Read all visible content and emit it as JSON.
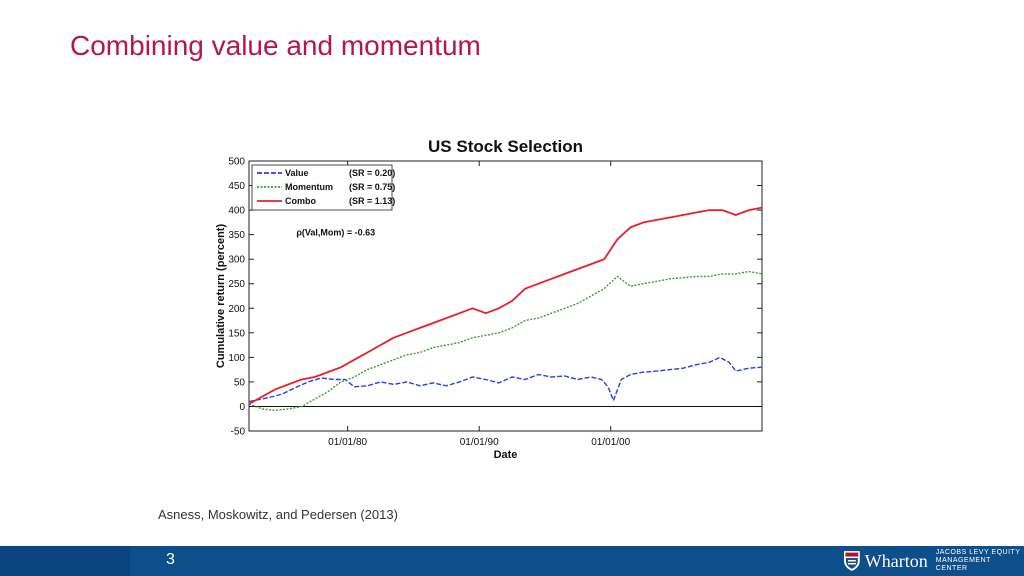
{
  "slide": {
    "title": "Combining value and momentum",
    "citation": "Asness, Moskowitz, and Pedersen (2013)",
    "page_number": "3"
  },
  "logo": {
    "name": "Wharton",
    "subtitle": "JACOBS LEVY EQUITY\nMANAGEMENT CENTER",
    "icon": "penn-shield-icon"
  },
  "colors": {
    "title": "#b5174b",
    "footer": "#0d4f8b",
    "value": "#2a3fe0",
    "momentum": "#3b9a3b",
    "combo": "#e8202a"
  },
  "chart_data": {
    "type": "line",
    "title": "US Stock Selection",
    "xlabel": "Date",
    "ylabel": "Cumulative return (percent)",
    "ylim": [
      -50,
      500
    ],
    "yticks": [
      -50,
      0,
      50,
      100,
      150,
      200,
      250,
      300,
      350,
      400,
      450,
      500
    ],
    "xlim": [
      1972.5,
      2011.5
    ],
    "xticks": [
      {
        "x": 1980,
        "label": "01/01/80"
      },
      {
        "x": 1990,
        "label": "01/01/90"
      },
      {
        "x": 2000,
        "label": "01/01/00"
      }
    ],
    "annotation": "ρ(Val,Mom) = -0.63",
    "legend_position": "top-left",
    "series": [
      {
        "name": "Value",
        "sr_label": "(SR = 0.20)",
        "color": "#2a3fe0",
        "style": "dashed",
        "x": [
          1972.5,
          1974,
          1975,
          1976,
          1977,
          1978,
          1979,
          1979.8,
          1980.5,
          1981.5,
          1982.5,
          1983.5,
          1984.5,
          1985.5,
          1986.5,
          1987.5,
          1988.5,
          1989.5,
          1990.5,
          1991.5,
          1992.5,
          1993.5,
          1994.5,
          1995.5,
          1996.5,
          1997.5,
          1998.5,
          1999.3,
          1999.8,
          2000.2,
          2000.8,
          2001.5,
          2002.5,
          2003.5,
          2004.5,
          2005.5,
          2006.5,
          2007.5,
          2008.3,
          2009,
          2009.5,
          2010.5,
          2011.5
        ],
        "y": [
          10,
          18,
          25,
          38,
          50,
          58,
          55,
          55,
          40,
          42,
          50,
          45,
          50,
          42,
          48,
          42,
          50,
          60,
          55,
          48,
          60,
          55,
          65,
          60,
          62,
          55,
          60,
          55,
          40,
          12,
          55,
          65,
          70,
          72,
          75,
          78,
          85,
          90,
          100,
          90,
          72,
          78,
          80
        ]
      },
      {
        "name": "Momentum",
        "sr_label": "(SR = 0.75)",
        "color": "#3b9a3b",
        "style": "dotted",
        "x": [
          1972.5,
          1973.5,
          1974.5,
          1975.5,
          1976.5,
          1977.5,
          1978.5,
          1979.5,
          1980.5,
          1981.5,
          1982.5,
          1983.5,
          1984.5,
          1985.5,
          1986.5,
          1987.5,
          1988.5,
          1989.5,
          1990.5,
          1991.5,
          1992.5,
          1993.5,
          1994.5,
          1995.5,
          1996.5,
          1997.5,
          1998.5,
          1999.5,
          2000.5,
          2001.5,
          2002.5,
          2003.5,
          2004.5,
          2005.5,
          2006.5,
          2007.5,
          2008.5,
          2009.5,
          2010.5,
          2011.5
        ],
        "y": [
          5,
          -5,
          -8,
          -5,
          0,
          15,
          30,
          50,
          60,
          75,
          85,
          95,
          105,
          110,
          120,
          125,
          130,
          140,
          145,
          150,
          160,
          175,
          180,
          190,
          200,
          210,
          225,
          240,
          265,
          245,
          250,
          255,
          260,
          262,
          265,
          265,
          270,
          270,
          275,
          270
        ]
      },
      {
        "name": "Combo",
        "sr_label": "(SR = 1.13)",
        "color": "#e8202a",
        "style": "solid",
        "x": [
          1972.5,
          1973.5,
          1974.5,
          1975.5,
          1976.5,
          1977.5,
          1978.5,
          1979.5,
          1980.5,
          1981.5,
          1982.5,
          1983.5,
          1984.5,
          1985.5,
          1986.5,
          1987.5,
          1988.5,
          1989.5,
          1990.5,
          1991.5,
          1992.5,
          1993.5,
          1994.5,
          1995.5,
          1996.5,
          1997.5,
          1998.5,
          1999.5,
          2000.5,
          2001.5,
          2002.5,
          2003.5,
          2004.5,
          2005.5,
          2006.5,
          2007.5,
          2008.5,
          2009.5,
          2010.5,
          2011.5
        ],
        "y": [
          5,
          20,
          35,
          45,
          55,
          60,
          70,
          80,
          95,
          110,
          125,
          140,
          150,
          160,
          170,
          180,
          190,
          200,
          190,
          200,
          215,
          240,
          250,
          260,
          270,
          280,
          290,
          300,
          340,
          365,
          375,
          380,
          385,
          390,
          395,
          400,
          400,
          390,
          400,
          405
        ]
      }
    ]
  }
}
